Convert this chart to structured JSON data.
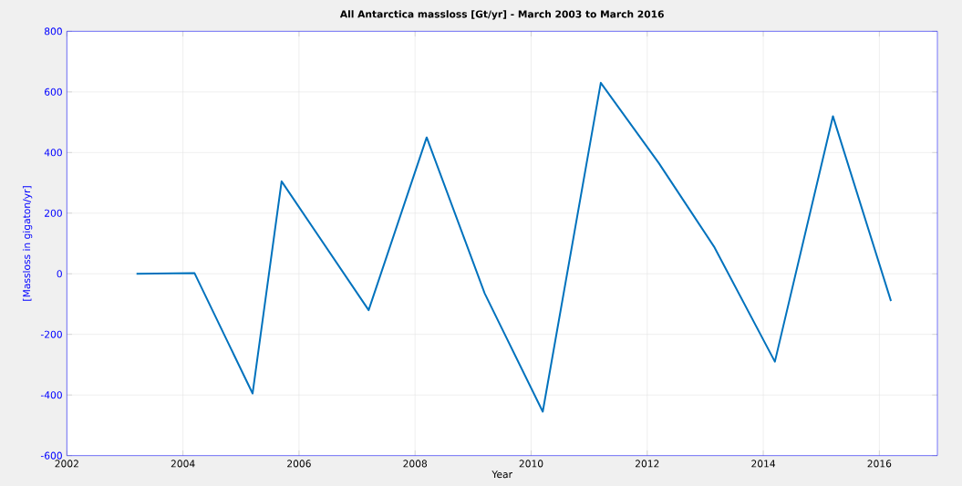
{
  "chart_data": {
    "type": "line",
    "title": "All Antarctica massloss [Gt/yr] - March 2003 to March 2016",
    "xlabel": "Year",
    "ylabel": "[Massloss in gigaton/yr]",
    "series": [
      {
        "color": "#0072bd",
        "x": [
          2003.2,
          2004.2,
          2005.2,
          2005.7,
          2007.2,
          2008.2,
          2009.2,
          2010.2,
          2011.2,
          2012.2,
          2013.15,
          2014.2,
          2015.2,
          2016.2
        ],
        "values": [
          0,
          2,
          -395,
          305,
          -120,
          450,
          -65,
          -455,
          630,
          365,
          90,
          -290,
          520,
          -90
        ]
      }
    ],
    "xlim": [
      2002,
      2017
    ],
    "xticks": [
      2002,
      2004,
      2006,
      2008,
      2010,
      2012,
      2014,
      2016
    ],
    "ylim": [
      -600,
      800
    ],
    "yticks": [
      -600,
      -400,
      -200,
      0,
      200,
      400,
      600,
      800
    ],
    "grid": true,
    "marker": "none",
    "line_style": "solid"
  }
}
